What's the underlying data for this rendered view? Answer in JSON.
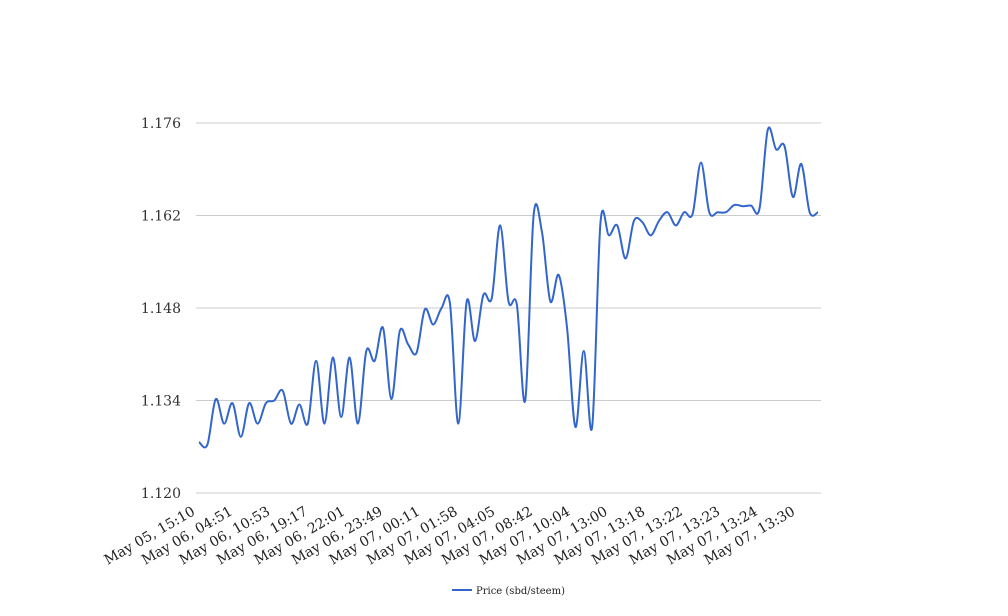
{
  "chart_data": {
    "type": "line",
    "title": "",
    "xlabel": "",
    "ylabel": "",
    "ylim": [
      1.12,
      1.176
    ],
    "yticks": [
      "1.120",
      "1.134",
      "1.148",
      "1.162",
      "1.176"
    ],
    "grid": true,
    "legend_position": "bottom-center",
    "x_tick_labels": [
      "May 05, 15:10",
      "May 06, 04:51",
      "May 06, 10:53",
      "May 06, 19:17",
      "May 06, 22:01",
      "May 06, 23:49",
      "May 07, 00:11",
      "May 07, 01:58",
      "May 07, 04:05",
      "May 07, 08:42",
      "May 07, 10:04",
      "May 07, 13:00",
      "May 07, 13:18",
      "May 07, 13:22",
      "May 07, 13:23",
      "May 07, 13:24",
      "May 07, 13:30"
    ],
    "series": [
      {
        "name": "Price (sbd/steem)",
        "color": "#3366cc",
        "values": [
          1.1277,
          1.1273,
          1.1342,
          1.1305,
          1.1336,
          1.1285,
          1.1336,
          1.1305,
          1.1336,
          1.134,
          1.1355,
          1.1305,
          1.1334,
          1.1305,
          1.14,
          1.1305,
          1.1405,
          1.1315,
          1.1405,
          1.1305,
          1.1415,
          1.14,
          1.145,
          1.1342,
          1.1445,
          1.1425,
          1.1412,
          1.1478,
          1.1455,
          1.148,
          1.1487,
          1.1305,
          1.149,
          1.143,
          1.15,
          1.1495,
          1.1605,
          1.149,
          1.1485,
          1.134,
          1.162,
          1.1595,
          1.149,
          1.153,
          1.145,
          1.13,
          1.1415,
          1.13,
          1.161,
          1.159,
          1.1605,
          1.1555,
          1.1612,
          1.161,
          1.159,
          1.1612,
          1.1625,
          1.1605,
          1.1625,
          1.1622,
          1.17,
          1.1625,
          1.1625,
          1.1625,
          1.1636,
          1.1634,
          1.1635,
          1.163,
          1.175,
          1.172,
          1.1725,
          1.1648,
          1.1698,
          1.1625,
          1.1625
        ]
      }
    ]
  }
}
